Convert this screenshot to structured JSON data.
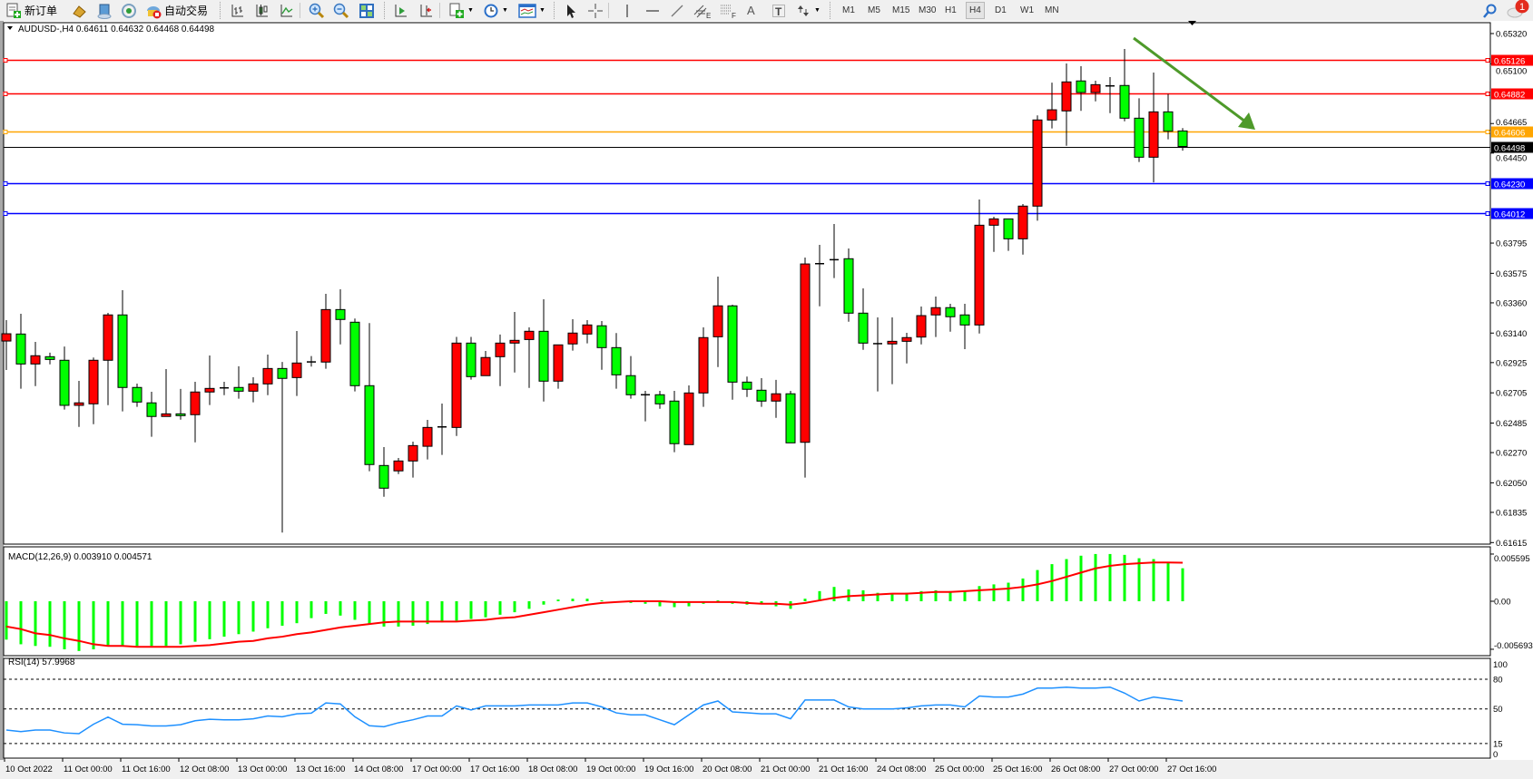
{
  "toolbar": {
    "new_order_label": "新订单",
    "auto_trading_label": "自动交易",
    "periods": [
      "M1",
      "M5",
      "M15",
      "M30",
      "H1",
      "H4",
      "D1",
      "W1",
      "MN"
    ],
    "active_period": "H4",
    "notification_count": "1",
    "icons": [
      "new-order-icon",
      "market-watch-icon",
      "data-window-icon",
      "navigator-icon",
      "auto-trading-icon",
      "bar-chart-icon",
      "candlestick-icon",
      "line-chart-icon",
      "zoom-in-icon",
      "zoom-out-icon",
      "tile-windows-icon",
      "auto-scroll-icon",
      "chart-shift-icon",
      "indicators-icon",
      "periods-icon",
      "templates-icon",
      "cursor-icon",
      "crosshair-icon",
      "vertical-line-icon",
      "horizontal-line-icon",
      "trendline-icon",
      "equidistant-channel-icon",
      "fibonacci-icon",
      "text-icon",
      "text-label-icon",
      "arrows-icon",
      "search-icon",
      "notification-icon"
    ],
    "channel_letter": "E",
    "fibo_letter": "F",
    "text_letter": "A",
    "label_letter": "T"
  },
  "chart_data": [
    {
      "type": "candlestick",
      "title": "AUDUSD-,H4  0.64611 0.64632 0.64468 0.64498",
      "symbol": "AUDUSD-",
      "timeframe": "H4",
      "last_ohlc": {
        "open": 0.64611,
        "high": 0.64632,
        "low": 0.64468,
        "close": 0.64498
      },
      "bullish_color": "#ff0000",
      "bearish_color": "#00ff00",
      "ylim": [
        0.61615,
        0.6532
      ],
      "y_ticks": [
        "0.65320",
        "0.65100",
        "0.64665",
        "0.64450",
        "0.63795",
        "0.63575",
        "0.63360",
        "0.63140",
        "0.62925",
        "0.62705",
        "0.62485",
        "0.62270",
        "0.62050",
        "0.61835",
        "0.61615"
      ],
      "x_ticks": [
        "10 Oct 2022",
        "11 Oct 00:00",
        "11 Oct 16:00",
        "12 Oct 08:00",
        "13 Oct 00:00",
        "13 Oct 16:00",
        "14 Oct 08:00",
        "17 Oct 00:00",
        "17 Oct 16:00",
        "18 Oct 08:00",
        "19 Oct 00:00",
        "19 Oct 16:00",
        "20 Oct 08:00",
        "21 Oct 00:00",
        "21 Oct 16:00",
        "24 Oct 08:00",
        "25 Oct 00:00",
        "25 Oct 16:00",
        "26 Oct 08:00",
        "27 Oct 00:00",
        "27 Oct 16:00"
      ],
      "ohlc_fields": [
        "open",
        "high",
        "low",
        "close"
      ],
      "candles": [
        [
          0.63082,
          0.63234,
          0.62871,
          0.63135
        ],
        [
          0.63133,
          0.6328,
          0.62735,
          0.62915
        ],
        [
          0.62915,
          0.63076,
          0.62754,
          0.62975
        ],
        [
          0.62968,
          0.62997,
          0.62912,
          0.62948
        ],
        [
          0.62942,
          0.63042,
          0.62583,
          0.62614
        ],
        [
          0.62614,
          0.62792,
          0.62457,
          0.62632
        ],
        [
          0.62625,
          0.62962,
          0.62477,
          0.62942
        ],
        [
          0.62942,
          0.63287,
          0.62615,
          0.63272
        ],
        [
          0.63272,
          0.63452,
          0.6257,
          0.62744
        ],
        [
          0.62744,
          0.62772,
          0.62603,
          0.62638
        ],
        [
          0.62632,
          0.62713,
          0.62385,
          0.62533
        ],
        [
          0.62533,
          0.62878,
          0.62533,
          0.62552
        ],
        [
          0.62552,
          0.62733,
          0.6251,
          0.62539
        ],
        [
          0.62546,
          0.62785,
          0.62345,
          0.62711
        ],
        [
          0.62711,
          0.62977,
          0.62616,
          0.62737
        ],
        [
          0.62741,
          0.62785,
          0.62688,
          0.62741
        ],
        [
          0.62744,
          0.62898,
          0.62662,
          0.62717
        ],
        [
          0.62717,
          0.62818,
          0.62636,
          0.6277
        ],
        [
          0.6277,
          0.62983,
          0.62688,
          0.62882
        ],
        [
          0.62882,
          0.6293,
          0.61688,
          0.6281
        ],
        [
          0.62816,
          0.63155,
          0.62682,
          0.62922
        ],
        [
          0.6293,
          0.62973,
          0.62896,
          0.6293
        ],
        [
          0.62929,
          0.63426,
          0.6288,
          0.63311
        ],
        [
          0.63311,
          0.63459,
          0.63058,
          0.63239
        ],
        [
          0.63219,
          0.63246,
          0.62715,
          0.62757
        ],
        [
          0.62757,
          0.63213,
          0.62134,
          0.62183
        ],
        [
          0.62176,
          0.6231,
          0.61949,
          0.62011
        ],
        [
          0.62137,
          0.62231,
          0.62114,
          0.62209
        ],
        [
          0.62209,
          0.6235,
          0.62088,
          0.62321
        ],
        [
          0.62316,
          0.62508,
          0.6222,
          0.62453
        ],
        [
          0.62457,
          0.62627,
          0.62253,
          0.62457
        ],
        [
          0.62453,
          0.63112,
          0.62391,
          0.63067
        ],
        [
          0.63067,
          0.63112,
          0.62801,
          0.62823
        ],
        [
          0.6283,
          0.6301,
          0.6283,
          0.62962
        ],
        [
          0.62968,
          0.63129,
          0.62754,
          0.63067
        ],
        [
          0.63067,
          0.63294,
          0.62853,
          0.63087
        ],
        [
          0.63093,
          0.63181,
          0.62741,
          0.63153
        ],
        [
          0.63153,
          0.63386,
          0.62642,
          0.6279
        ],
        [
          0.6279,
          0.63054,
          0.62735,
          0.63054
        ],
        [
          0.63061,
          0.63241,
          0.63012,
          0.6314
        ],
        [
          0.63133,
          0.63234,
          0.63065,
          0.63199
        ],
        [
          0.63193,
          0.63228,
          0.62873,
          0.63034
        ],
        [
          0.63034,
          0.6314,
          0.62735,
          0.62836
        ],
        [
          0.6283,
          0.62973,
          0.62662,
          0.62691
        ],
        [
          0.62691,
          0.62719,
          0.62497,
          0.62691
        ],
        [
          0.62691,
          0.62719,
          0.62589,
          0.62625
        ],
        [
          0.62645,
          0.62719,
          0.62273,
          0.62335
        ],
        [
          0.62328,
          0.62759,
          0.62328,
          0.62704
        ],
        [
          0.62704,
          0.63181,
          0.62603,
          0.63107
        ],
        [
          0.63113,
          0.63551,
          0.62893,
          0.63338
        ],
        [
          0.63338,
          0.63346,
          0.62655,
          0.62783
        ],
        [
          0.62783,
          0.62823,
          0.62675,
          0.62731
        ],
        [
          0.62724,
          0.62812,
          0.62603,
          0.62645
        ],
        [
          0.62645,
          0.62799,
          0.62523,
          0.62698
        ],
        [
          0.62698,
          0.62719,
          0.62341,
          0.62341
        ],
        [
          0.62345,
          0.6369,
          0.62088,
          0.63643
        ],
        [
          0.63645,
          0.63782,
          0.63335,
          0.63645
        ],
        [
          0.63674,
          0.63934,
          0.6354,
          0.63674
        ],
        [
          0.63681,
          0.63756,
          0.63223,
          0.63285
        ],
        [
          0.63285,
          0.63465,
          0.63018,
          0.63067
        ],
        [
          0.63063,
          0.63254,
          0.62715,
          0.63063
        ],
        [
          0.63061,
          0.63254,
          0.62768,
          0.6308
        ],
        [
          0.6308,
          0.63142,
          0.62919,
          0.63107
        ],
        [
          0.63111,
          0.63333,
          0.63058,
          0.63267
        ],
        [
          0.63272,
          0.63406,
          0.63111,
          0.63325
        ],
        [
          0.63325,
          0.63353,
          0.6315,
          0.63259
        ],
        [
          0.63272,
          0.63353,
          0.63023,
          0.63199
        ],
        [
          0.63199,
          0.64112,
          0.63137,
          0.63925
        ],
        [
          0.63925,
          0.63987,
          0.63731,
          0.63971
        ],
        [
          0.63971,
          0.63971,
          0.63738,
          0.63826
        ],
        [
          0.63826,
          0.64079,
          0.63711,
          0.64064
        ],
        [
          0.64064,
          0.64724,
          0.63958,
          0.64691
        ],
        [
          0.64691,
          0.64963,
          0.64629,
          0.64765
        ],
        [
          0.64757,
          0.65102,
          0.64503,
          0.64968
        ],
        [
          0.64975,
          0.65082,
          0.64757,
          0.64891
        ],
        [
          0.64891,
          0.64977,
          0.64827,
          0.64948
        ],
        [
          0.64939,
          0.65003,
          0.64741,
          0.64939
        ],
        [
          0.64942,
          0.65208,
          0.64681,
          0.64704
        ],
        [
          0.64704,
          0.64849,
          0.64385,
          0.6442
        ],
        [
          0.6442,
          0.65036,
          0.64237,
          0.6475
        ],
        [
          0.6475,
          0.6488,
          0.6455,
          0.64609
        ],
        [
          0.64611,
          0.64632,
          0.64468,
          0.64498
        ]
      ],
      "horizontal_lines": [
        {
          "price": "0.65126",
          "color": "#ff0000"
        },
        {
          "price": "0.64882",
          "color": "#ff0000"
        },
        {
          "price": "0.64606",
          "color": "#ffa500"
        },
        {
          "price": "0.64230",
          "color": "#0000ff"
        },
        {
          "price": "0.64012",
          "color": "#0000ff"
        }
      ],
      "current_price": {
        "price": "0.64498",
        "color": "#000000"
      },
      "annotations": [
        {
          "type": "arrow",
          "color": "#4e9a2a",
          "direction": "down"
        }
      ]
    },
    {
      "type": "bar+line",
      "title": "MACD(12,26,9) 0.003910 0.004571",
      "ylim": [
        -0.005693,
        0.005595
      ],
      "y_ticks": [
        "0.005595",
        "0.00",
        "-0.005693"
      ],
      "histogram_color": "#00ff00",
      "signal_color": "#ff0000",
      "histogram": [
        -0.00455,
        -0.0051,
        -0.0053,
        -0.0054,
        -0.0057,
        -0.0059,
        -0.0057,
        -0.0052,
        -0.0053,
        -0.0053,
        -0.0053,
        -0.0053,
        -0.0051,
        -0.0048,
        -0.0045,
        -0.0042,
        -0.0039,
        -0.0036,
        -0.0032,
        -0.0029,
        -0.0026,
        -0.002,
        -0.0015,
        -0.0017,
        -0.0022,
        -0.0027,
        -0.003,
        -0.003,
        -0.0029,
        -0.0027,
        -0.0025,
        -0.0023,
        -0.0021,
        -0.0019,
        -0.0016,
        -0.0013,
        -0.0009,
        -0.0004,
        0.0002,
        0.0003,
        0.0003,
        0.0001,
        -0.0001,
        -0.0002,
        -0.0003,
        -0.0006,
        -0.0007,
        -0.0006,
        -0.0003,
        0.0001,
        -0.0003,
        -0.0004,
        -0.0003,
        -0.0006,
        -0.0009,
        0.0003,
        0.0012,
        0.0017,
        0.0014,
        0.0013,
        0.001,
        0.0009,
        0.001,
        0.0012,
        0.0013,
        0.0012,
        0.0012,
        0.0018,
        0.002,
        0.0022,
        0.0027,
        0.0037,
        0.0044,
        0.005,
        0.0054,
        0.0056,
        0.0056,
        0.0055,
        0.0051,
        0.005,
        0.0046,
        0.00391
      ],
      "signal": [
        -0.003,
        -0.0033,
        -0.0038,
        -0.004,
        -0.0044,
        -0.0047,
        -0.0051,
        -0.0053,
        -0.0053,
        -0.0054,
        -0.0054,
        -0.0054,
        -0.0054,
        -0.0053,
        -0.0052,
        -0.005,
        -0.0048,
        -0.0047,
        -0.0044,
        -0.0042,
        -0.0039,
        -0.0037,
        -0.0034,
        -0.0031,
        -0.0029,
        -0.0027,
        -0.0025,
        -0.0024,
        -0.0024,
        -0.0024,
        -0.0024,
        -0.0024,
        -0.0023,
        -0.0022,
        -0.002,
        -0.0019,
        -0.0016,
        -0.0013,
        -0.001,
        -0.0007,
        -0.0004,
        -0.0002,
        -0.0001,
        0.0,
        0.0,
        0.0,
        -0.0001,
        -0.0001,
        -0.0001,
        -0.0001,
        -0.0001,
        -0.0002,
        -0.0003,
        -0.0003,
        -0.0004,
        -0.0002,
        0.0001,
        0.0004,
        0.0006,
        0.0007,
        0.0008,
        0.0009,
        0.0009,
        0.001,
        0.0011,
        0.0011,
        0.0012,
        0.0013,
        0.0014,
        0.0015,
        0.0017,
        0.002,
        0.0024,
        0.0029,
        0.0034,
        0.0039,
        0.0042,
        0.0044,
        0.0045,
        0.0046,
        0.0046,
        0.004571
      ]
    },
    {
      "type": "line",
      "title": "RSI(14) 57.9968",
      "ylim": [
        0,
        100
      ],
      "y_ticks": [
        "100",
        "80",
        "50",
        "15",
        "0"
      ],
      "levels": [
        80,
        50,
        15
      ],
      "line_color": "#1e90ff",
      "values": [
        28.6,
        27,
        28.6,
        28.6,
        25.7,
        25,
        34.5,
        41.7,
        34.5,
        34,
        32.7,
        32.7,
        34,
        38,
        39.5,
        39,
        39,
        40,
        42.8,
        42,
        45,
        45.7,
        56,
        55,
        42,
        33,
        32,
        36,
        39,
        42.8,
        42.8,
        53,
        49,
        53,
        53,
        53,
        54,
        54,
        54,
        56,
        56,
        52,
        46,
        44,
        44,
        39,
        34,
        44,
        54,
        58,
        47,
        46,
        45,
        45,
        40,
        59,
        59,
        59,
        52,
        50,
        50,
        50,
        51,
        53,
        54,
        54,
        52,
        63,
        62,
        62,
        65,
        71,
        71,
        72,
        71,
        71,
        72,
        66,
        58,
        62,
        60,
        57.9968
      ]
    }
  ]
}
